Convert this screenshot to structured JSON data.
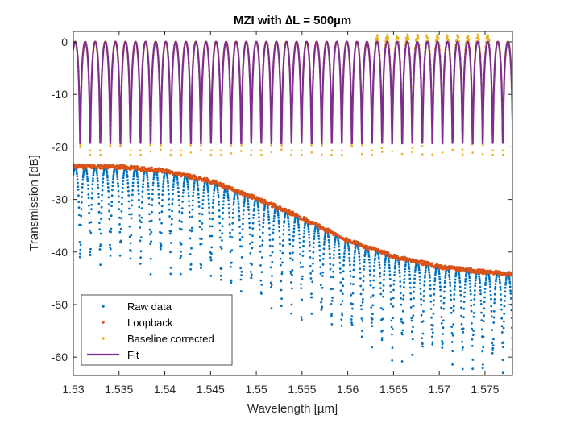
{
  "chart_data": {
    "type": "scatter",
    "title": "MZI with ∆L = 500µm",
    "xlabel": "Wavelength [µm]",
    "ylabel": "Transmission [dB]",
    "xlim": [
      1.53,
      1.578
    ],
    "ylim": [
      -63.5,
      2
    ],
    "x_ticks": [
      1.53,
      1.535,
      1.54,
      1.545,
      1.55,
      1.555,
      1.56,
      1.565,
      1.57,
      1.575
    ],
    "x_tick_labels": [
      "1.53",
      "1.535",
      "1.54",
      "1.545",
      "1.55",
      "1.555",
      "1.56",
      "1.565",
      "1.57",
      "1.575"
    ],
    "y_ticks": [
      0,
      -10,
      -20,
      -30,
      -40,
      -50,
      -60
    ],
    "y_tick_labels": [
      "0",
      "-10",
      "-20",
      "-30",
      "-40",
      "-50",
      "-60"
    ],
    "fringe_period_um": 0.0011,
    "legend_position": "bottom-left",
    "series": [
      {
        "name": "Raw data",
        "style": "dots",
        "color": "#0072BD",
        "envelope_x": [
          1.53,
          1.535,
          1.54,
          1.545,
          1.55,
          1.555,
          1.56,
          1.565,
          1.57,
          1.575,
          1.578
        ],
        "envelope_max_y": [
          -23.8,
          -23.9,
          -24.6,
          -26.5,
          -29.8,
          -33.5,
          -37.8,
          -40.8,
          -42.8,
          -43.8,
          -44.2
        ],
        "min_y_approx": -63.5
      },
      {
        "name": "Loopback",
        "style": "dots",
        "color": "#D95319",
        "x": [
          1.53,
          1.535,
          1.54,
          1.545,
          1.55,
          1.555,
          1.56,
          1.565,
          1.57,
          1.575,
          1.578
        ],
        "y": [
          -23.7,
          -23.8,
          -24.5,
          -26.5,
          -29.8,
          -33.5,
          -37.8,
          -40.8,
          -42.8,
          -43.8,
          -44.2
        ]
      },
      {
        "name": "Baseline corrected",
        "style": "dots",
        "color": "#EDB120",
        "peak_y_approx": 0,
        "min_y_approx": -20
      },
      {
        "name": "Fit",
        "style": "line",
        "color": "#7E2F8E",
        "max_y": 0,
        "min_y": -19.5
      }
    ]
  }
}
